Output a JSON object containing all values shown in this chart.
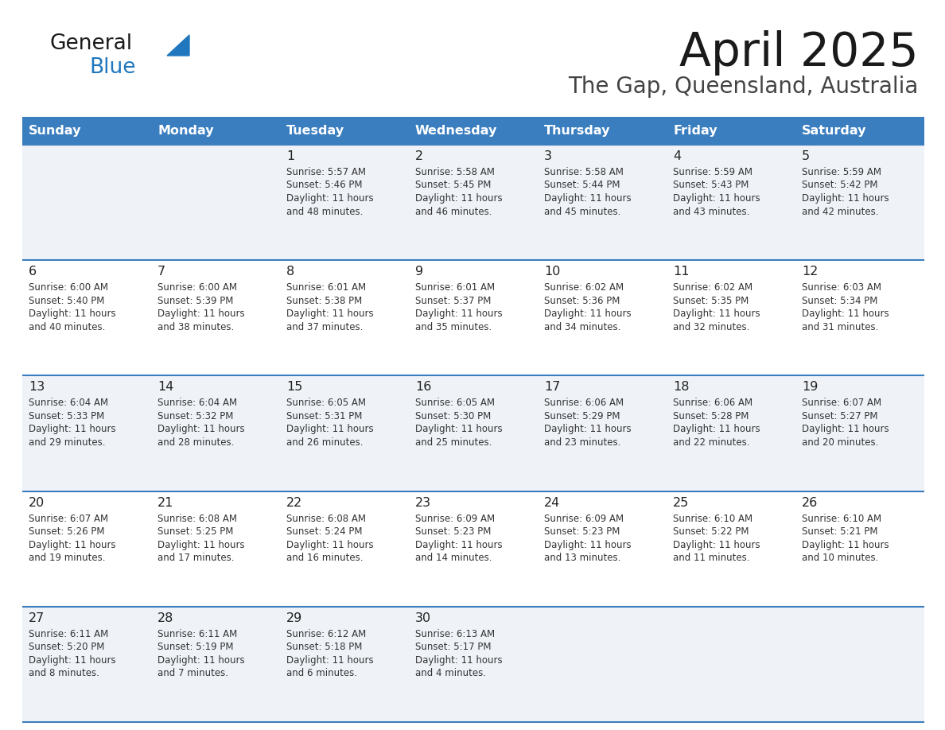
{
  "title": "April 2025",
  "subtitle": "The Gap, Queensland, Australia",
  "days_of_week": [
    "Sunday",
    "Monday",
    "Tuesday",
    "Wednesday",
    "Thursday",
    "Friday",
    "Saturday"
  ],
  "header_bg": "#3a7ebf",
  "header_text": "#ffffff",
  "row_bg_light": "#eff3f8",
  "row_bg_white": "#ffffff",
  "border_color": "#3a7ebf",
  "cell_text_color": "#333333",
  "day_num_color": "#222222",
  "logo_color1": "#1a1a1a",
  "logo_color2": "#2077be",
  "title_color": "#1a1a1a",
  "subtitle_color": "#444444",
  "weeks": [
    {
      "bg": "light",
      "days": [
        {
          "day": "",
          "sunrise": "",
          "sunset": "",
          "daylight1": "",
          "daylight2": ""
        },
        {
          "day": "",
          "sunrise": "",
          "sunset": "",
          "daylight1": "",
          "daylight2": ""
        },
        {
          "day": "1",
          "sunrise": "Sunrise: 5:57 AM",
          "sunset": "Sunset: 5:46 PM",
          "daylight1": "Daylight: 11 hours",
          "daylight2": "and 48 minutes."
        },
        {
          "day": "2",
          "sunrise": "Sunrise: 5:58 AM",
          "sunset": "Sunset: 5:45 PM",
          "daylight1": "Daylight: 11 hours",
          "daylight2": "and 46 minutes."
        },
        {
          "day": "3",
          "sunrise": "Sunrise: 5:58 AM",
          "sunset": "Sunset: 5:44 PM",
          "daylight1": "Daylight: 11 hours",
          "daylight2": "and 45 minutes."
        },
        {
          "day": "4",
          "sunrise": "Sunrise: 5:59 AM",
          "sunset": "Sunset: 5:43 PM",
          "daylight1": "Daylight: 11 hours",
          "daylight2": "and 43 minutes."
        },
        {
          "day": "5",
          "sunrise": "Sunrise: 5:59 AM",
          "sunset": "Sunset: 5:42 PM",
          "daylight1": "Daylight: 11 hours",
          "daylight2": "and 42 minutes."
        }
      ]
    },
    {
      "bg": "white",
      "days": [
        {
          "day": "6",
          "sunrise": "Sunrise: 6:00 AM",
          "sunset": "Sunset: 5:40 PM",
          "daylight1": "Daylight: 11 hours",
          "daylight2": "and 40 minutes."
        },
        {
          "day": "7",
          "sunrise": "Sunrise: 6:00 AM",
          "sunset": "Sunset: 5:39 PM",
          "daylight1": "Daylight: 11 hours",
          "daylight2": "and 38 minutes."
        },
        {
          "day": "8",
          "sunrise": "Sunrise: 6:01 AM",
          "sunset": "Sunset: 5:38 PM",
          "daylight1": "Daylight: 11 hours",
          "daylight2": "and 37 minutes."
        },
        {
          "day": "9",
          "sunrise": "Sunrise: 6:01 AM",
          "sunset": "Sunset: 5:37 PM",
          "daylight1": "Daylight: 11 hours",
          "daylight2": "and 35 minutes."
        },
        {
          "day": "10",
          "sunrise": "Sunrise: 6:02 AM",
          "sunset": "Sunset: 5:36 PM",
          "daylight1": "Daylight: 11 hours",
          "daylight2": "and 34 minutes."
        },
        {
          "day": "11",
          "sunrise": "Sunrise: 6:02 AM",
          "sunset": "Sunset: 5:35 PM",
          "daylight1": "Daylight: 11 hours",
          "daylight2": "and 32 minutes."
        },
        {
          "day": "12",
          "sunrise": "Sunrise: 6:03 AM",
          "sunset": "Sunset: 5:34 PM",
          "daylight1": "Daylight: 11 hours",
          "daylight2": "and 31 minutes."
        }
      ]
    },
    {
      "bg": "light",
      "days": [
        {
          "day": "13",
          "sunrise": "Sunrise: 6:04 AM",
          "sunset": "Sunset: 5:33 PM",
          "daylight1": "Daylight: 11 hours",
          "daylight2": "and 29 minutes."
        },
        {
          "day": "14",
          "sunrise": "Sunrise: 6:04 AM",
          "sunset": "Sunset: 5:32 PM",
          "daylight1": "Daylight: 11 hours",
          "daylight2": "and 28 minutes."
        },
        {
          "day": "15",
          "sunrise": "Sunrise: 6:05 AM",
          "sunset": "Sunset: 5:31 PM",
          "daylight1": "Daylight: 11 hours",
          "daylight2": "and 26 minutes."
        },
        {
          "day": "16",
          "sunrise": "Sunrise: 6:05 AM",
          "sunset": "Sunset: 5:30 PM",
          "daylight1": "Daylight: 11 hours",
          "daylight2": "and 25 minutes."
        },
        {
          "day": "17",
          "sunrise": "Sunrise: 6:06 AM",
          "sunset": "Sunset: 5:29 PM",
          "daylight1": "Daylight: 11 hours",
          "daylight2": "and 23 minutes."
        },
        {
          "day": "18",
          "sunrise": "Sunrise: 6:06 AM",
          "sunset": "Sunset: 5:28 PM",
          "daylight1": "Daylight: 11 hours",
          "daylight2": "and 22 minutes."
        },
        {
          "day": "19",
          "sunrise": "Sunrise: 6:07 AM",
          "sunset": "Sunset: 5:27 PM",
          "daylight1": "Daylight: 11 hours",
          "daylight2": "and 20 minutes."
        }
      ]
    },
    {
      "bg": "white",
      "days": [
        {
          "day": "20",
          "sunrise": "Sunrise: 6:07 AM",
          "sunset": "Sunset: 5:26 PM",
          "daylight1": "Daylight: 11 hours",
          "daylight2": "and 19 minutes."
        },
        {
          "day": "21",
          "sunrise": "Sunrise: 6:08 AM",
          "sunset": "Sunset: 5:25 PM",
          "daylight1": "Daylight: 11 hours",
          "daylight2": "and 17 minutes."
        },
        {
          "day": "22",
          "sunrise": "Sunrise: 6:08 AM",
          "sunset": "Sunset: 5:24 PM",
          "daylight1": "Daylight: 11 hours",
          "daylight2": "and 16 minutes."
        },
        {
          "day": "23",
          "sunrise": "Sunrise: 6:09 AM",
          "sunset": "Sunset: 5:23 PM",
          "daylight1": "Daylight: 11 hours",
          "daylight2": "and 14 minutes."
        },
        {
          "day": "24",
          "sunrise": "Sunrise: 6:09 AM",
          "sunset": "Sunset: 5:23 PM",
          "daylight1": "Daylight: 11 hours",
          "daylight2": "and 13 minutes."
        },
        {
          "day": "25",
          "sunrise": "Sunrise: 6:10 AM",
          "sunset": "Sunset: 5:22 PM",
          "daylight1": "Daylight: 11 hours",
          "daylight2": "and 11 minutes."
        },
        {
          "day": "26",
          "sunrise": "Sunrise: 6:10 AM",
          "sunset": "Sunset: 5:21 PM",
          "daylight1": "Daylight: 11 hours",
          "daylight2": "and 10 minutes."
        }
      ]
    },
    {
      "bg": "light",
      "days": [
        {
          "day": "27",
          "sunrise": "Sunrise: 6:11 AM",
          "sunset": "Sunset: 5:20 PM",
          "daylight1": "Daylight: 11 hours",
          "daylight2": "and 8 minutes."
        },
        {
          "day": "28",
          "sunrise": "Sunrise: 6:11 AM",
          "sunset": "Sunset: 5:19 PM",
          "daylight1": "Daylight: 11 hours",
          "daylight2": "and 7 minutes."
        },
        {
          "day": "29",
          "sunrise": "Sunrise: 6:12 AM",
          "sunset": "Sunset: 5:18 PM",
          "daylight1": "Daylight: 11 hours",
          "daylight2": "and 6 minutes."
        },
        {
          "day": "30",
          "sunrise": "Sunrise: 6:13 AM",
          "sunset": "Sunset: 5:17 PM",
          "daylight1": "Daylight: 11 hours",
          "daylight2": "and 4 minutes."
        },
        {
          "day": "",
          "sunrise": "",
          "sunset": "",
          "daylight1": "",
          "daylight2": ""
        },
        {
          "day": "",
          "sunrise": "",
          "sunset": "",
          "daylight1": "",
          "daylight2": ""
        },
        {
          "day": "",
          "sunrise": "",
          "sunset": "",
          "daylight1": "",
          "daylight2": ""
        }
      ]
    }
  ]
}
